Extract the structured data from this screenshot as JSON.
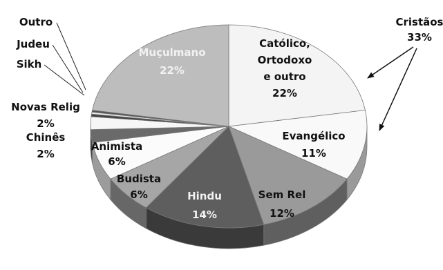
{
  "chart_data": {
    "type": "pie",
    "title": "",
    "style": "3d-exploded-grayscale",
    "slices": [
      {
        "name": "Católico, Ortodoxo e outro",
        "lines": [
          "Católico,",
          "Ortodoxo",
          "e outro"
        ],
        "value": 22,
        "label": "22%",
        "color": "#f4f4f4"
      },
      {
        "name": "Evangélico",
        "lines": [
          "Evangélico"
        ],
        "value": 11,
        "label": "11%",
        "color": "#f9f9f9"
      },
      {
        "name": "Sem Rel",
        "lines": [
          "Sem Rel"
        ],
        "value": 12,
        "label": "12%",
        "color": "#9a9a9a"
      },
      {
        "name": "Hindu",
        "lines": [
          "Hindu"
        ],
        "value": 14,
        "label": "14%",
        "color": "#5e5e5e"
      },
      {
        "name": "Budista",
        "lines": [
          "Budista"
        ],
        "value": 6,
        "label": "6%",
        "color": "#a6a6a6"
      },
      {
        "name": "Animista",
        "lines": [
          "Animista"
        ],
        "value": 6,
        "label": "6%",
        "color": "#fbfbfb"
      },
      {
        "name": "Chinês",
        "lines": [
          "Chinês"
        ],
        "value": 2,
        "label": "2%",
        "color": "#6a6a6a"
      },
      {
        "name": "Novas Relig",
        "lines": [
          "Novas Relig"
        ],
        "value": 2,
        "label": "2%",
        "color": "#f6f6f6"
      },
      {
        "name": "Sikh",
        "lines": [
          "Sikh"
        ],
        "value": 0.4,
        "label": "",
        "color": "#444444"
      },
      {
        "name": "Judeu",
        "lines": [
          "Judeu"
        ],
        "value": 0.3,
        "label": "",
        "color": "#eeeeee"
      },
      {
        "name": "Outro",
        "lines": [
          "Outro"
        ],
        "value": 0.3,
        "label": "",
        "color": "#555555"
      },
      {
        "name": "Muçulmano",
        "lines": [
          "Muçulmano"
        ],
        "value": 22,
        "label": "22%",
        "color": "#bdbdbd"
      }
    ],
    "annotations": [
      {
        "name": "Cristãos",
        "lines": [
          "Cristãos",
          "33%"
        ]
      }
    ]
  }
}
